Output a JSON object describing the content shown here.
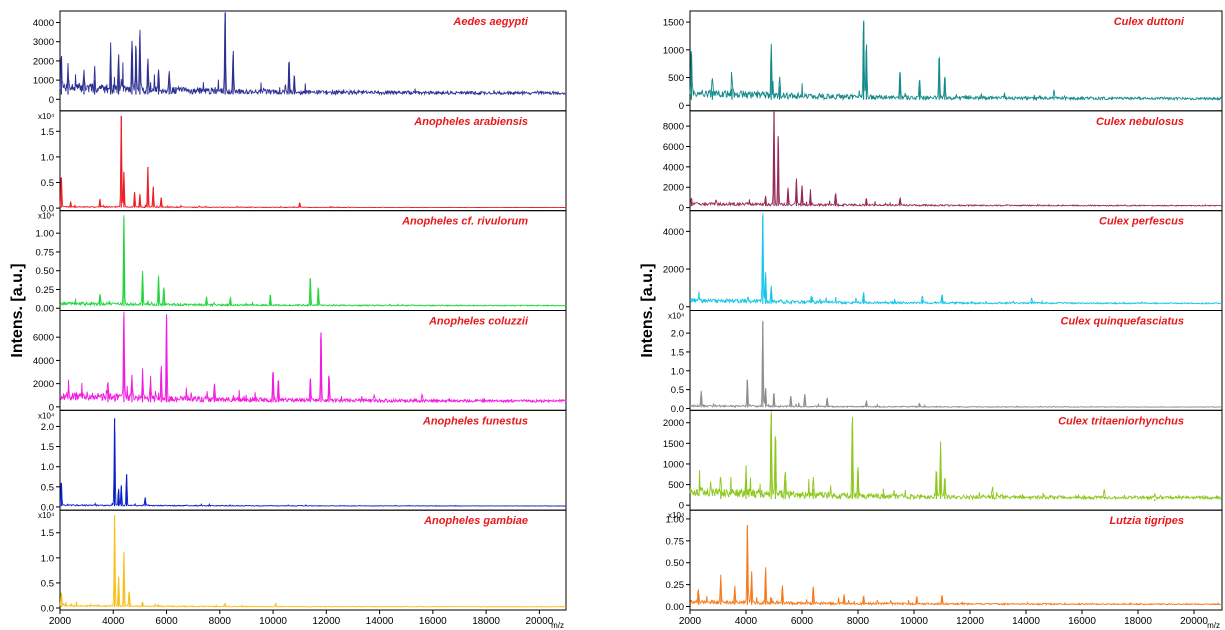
{
  "chart_data": [
    {
      "type": "line",
      "ylabel": "Intens. [a.u.]",
      "xlabel": "m/z",
      "xlim": [
        2000,
        21000
      ],
      "xticks": [
        2000,
        4000,
        6000,
        8000,
        10000,
        12000,
        14000,
        16000,
        18000,
        20000
      ],
      "panels": [
        {
          "name": "Aedes aegypti",
          "color": "#2e3192",
          "scale_label": "",
          "ylim": [
            -600,
            4600
          ],
          "yticks": [
            "0",
            "1000",
            "2000",
            "3000",
            "4000"
          ],
          "ytick_values": [
            0,
            1000,
            2000,
            3000,
            4000
          ],
          "baseline": 250,
          "noise": 500,
          "peaks": [
            [
              2050,
              2000
            ],
            [
              2300,
              1300
            ],
            [
              2900,
              1100
            ],
            [
              3300,
              1000
            ],
            [
              3900,
              2200
            ],
            [
              4200,
              1700
            ],
            [
              4700,
              2400
            ],
            [
              4850,
              2500
            ],
            [
              5000,
              3300
            ],
            [
              5300,
              1600
            ],
            [
              5700,
              1200
            ],
            [
              6100,
              1100
            ],
            [
              8200,
              4500
            ],
            [
              8500,
              2300
            ],
            [
              10600,
              1800
            ],
            [
              10800,
              1000
            ]
          ]
        },
        {
          "name": "Anopheles arabiensis",
          "color": "#ee1c25",
          "scale_label": "x10⁴",
          "ylim": [
            -0.05,
            1.9
          ],
          "yticks": [
            "0.0",
            "0.5",
            "1.0",
            "1.5"
          ],
          "ytick_values": [
            0,
            0.5,
            1.0,
            1.5
          ],
          "baseline": 0.01,
          "noise": 0.02,
          "peaks": [
            [
              2050,
              0.6
            ],
            [
              2400,
              0.1
            ],
            [
              3500,
              0.15
            ],
            [
              4300,
              1.8
            ],
            [
              4400,
              0.7
            ],
            [
              4800,
              0.3
            ],
            [
              5000,
              0.25
            ],
            [
              5300,
              0.8
            ],
            [
              5500,
              0.4
            ],
            [
              5800,
              0.2
            ],
            [
              11000,
              0.1
            ]
          ]
        },
        {
          "name": "Anopheles cf. rivulorum",
          "color": "#22d43c",
          "scale_label": "x10⁴",
          "ylim": [
            -0.03,
            1.3
          ],
          "yticks": [
            "0.00",
            "0.25",
            "0.50",
            "0.75",
            "1.00"
          ],
          "ytick_values": [
            0,
            0.25,
            0.5,
            0.75,
            1.0
          ],
          "baseline": 0.03,
          "noise": 0.04,
          "peaks": [
            [
              3500,
              0.15
            ],
            [
              4400,
              1.2
            ],
            [
              5100,
              0.45
            ],
            [
              5700,
              0.4
            ],
            [
              5900,
              0.25
            ],
            [
              7500,
              0.1
            ],
            [
              8400,
              0.1
            ],
            [
              9900,
              0.15
            ],
            [
              11400,
              0.4
            ],
            [
              11700,
              0.25
            ]
          ]
        },
        {
          "name": "Anopheles coluzzii",
          "color": "#f21ce0",
          "scale_label": "",
          "ylim": [
            -300,
            8300
          ],
          "yticks": [
            "0",
            "2000",
            "4000",
            "6000",
            "8000"
          ],
          "ytick_values": [
            0,
            2000,
            4000,
            6000,
            8000
          ],
          "baseline": 400,
          "noise": 700,
          "peaks": [
            [
              3800,
              1500
            ],
            [
              4400,
              7800
            ],
            [
              4700,
              2000
            ],
            [
              5100,
              2300
            ],
            [
              5400,
              1800
            ],
            [
              5800,
              3000
            ],
            [
              6000,
              7700
            ],
            [
              7800,
              1600
            ],
            [
              10000,
              2800
            ],
            [
              10200,
              1800
            ],
            [
              11400,
              2000
            ],
            [
              11800,
              6400
            ],
            [
              12100,
              2400
            ],
            [
              13800,
              600
            ],
            [
              15600,
              600
            ]
          ]
        },
        {
          "name": "Anopheles funestus",
          "color": "#0c20c4",
          "scale_label": "x10⁴",
          "ylim": [
            -0.08,
            2.4
          ],
          "yticks": [
            "0.0",
            "0.5",
            "1.0",
            "1.5",
            "2.0"
          ],
          "ytick_values": [
            0,
            0.5,
            1.0,
            1.5,
            2.0
          ],
          "baseline": 0.02,
          "noise": 0.03,
          "peaks": [
            [
              2050,
              0.6
            ],
            [
              4050,
              2.2
            ],
            [
              4200,
              0.4
            ],
            [
              4300,
              0.5
            ],
            [
              4500,
              0.8
            ],
            [
              5200,
              0.2
            ]
          ]
        },
        {
          "name": "Anopheles gambiae",
          "color": "#f7c11c",
          "scale_label": "x10⁴",
          "ylim": [
            -0.04,
            1.95
          ],
          "yticks": [
            "0.0",
            "0.5",
            "1.0",
            "1.5"
          ],
          "ytick_values": [
            0,
            0.5,
            1.0,
            1.5
          ],
          "baseline": 0.02,
          "noise": 0.03,
          "peaks": [
            [
              2050,
              0.3
            ],
            [
              4050,
              1.85
            ],
            [
              4200,
              0.6
            ],
            [
              4400,
              1.1
            ],
            [
              4600,
              0.3
            ],
            [
              5100,
              0.1
            ],
            [
              8200,
              0.06
            ],
            [
              10100,
              0.06
            ]
          ]
        }
      ]
    },
    {
      "type": "line",
      "ylabel": "Intens. [a.u.]",
      "xlabel": "m/z",
      "xlim": [
        2000,
        21000
      ],
      "xticks": [
        2000,
        4000,
        6000,
        8000,
        10000,
        12000,
        14000,
        16000,
        18000,
        20000
      ],
      "panels": [
        {
          "name": "Culex duttoni",
          "color": "#128a8a",
          "scale_label": "",
          "ylim": [
            -100,
            1700
          ],
          "yticks": [
            "0",
            "500",
            "1000",
            "1500"
          ],
          "ytick_values": [
            0,
            500,
            1000,
            1500
          ],
          "baseline": 100,
          "noise": 140,
          "peaks": [
            [
              2050,
              850
            ],
            [
              2800,
              250
            ],
            [
              3500,
              300
            ],
            [
              4900,
              900
            ],
            [
              5200,
              350
            ],
            [
              8200,
              1500
            ],
            [
              8300,
              1000
            ],
            [
              9500,
              500
            ],
            [
              10200,
              350
            ],
            [
              10900,
              850
            ],
            [
              11100,
              400
            ],
            [
              15000,
              150
            ]
          ]
        },
        {
          "name": "Culex nebulosus",
          "color": "#962a57",
          "scale_label": "",
          "ylim": [
            -300,
            9500
          ],
          "yticks": [
            "0",
            "2000",
            "4000",
            "6000",
            "8000"
          ],
          "ytick_values": [
            0,
            2000,
            4000,
            6000,
            8000
          ],
          "baseline": 150,
          "noise": 300,
          "peaks": [
            [
              2050,
              600
            ],
            [
              4700,
              800
            ],
            [
              5000,
              9500
            ],
            [
              5150,
              7000
            ],
            [
              5500,
              1700
            ],
            [
              5800,
              2600
            ],
            [
              6000,
              1900
            ],
            [
              6300,
              1100
            ],
            [
              7200,
              1200
            ],
            [
              8300,
              700
            ],
            [
              9500,
              800
            ]
          ]
        },
        {
          "name": "Culex perfescus",
          "color": "#12c6e8",
          "scale_label": "",
          "ylim": [
            -200,
            5100
          ],
          "yticks": [
            "0",
            "2000",
            "4000"
          ],
          "ytick_values": [
            0,
            2000,
            4000
          ],
          "baseline": 150,
          "noise": 220,
          "peaks": [
            [
              4600,
              4800
            ],
            [
              4700,
              1500
            ],
            [
              4900,
              800
            ],
            [
              8200,
              600
            ],
            [
              10300,
              350
            ],
            [
              11000,
              450
            ],
            [
              14200,
              250
            ]
          ]
        },
        {
          "name": "Culex quinquefasciatus",
          "color": "#8c8c8c",
          "scale_label": "x10⁴",
          "ylim": [
            -0.05,
            2.6
          ],
          "yticks": [
            "0.0",
            "0.5",
            "1.0",
            "1.5",
            "2.0"
          ],
          "ytick_values": [
            0,
            0.5,
            1.0,
            1.5,
            2.0
          ],
          "baseline": 0.03,
          "noise": 0.05,
          "peaks": [
            [
              2400,
              0.4
            ],
            [
              4050,
              0.75
            ],
            [
              4600,
              2.3
            ],
            [
              4700,
              0.5
            ],
            [
              5000,
              0.3
            ],
            [
              5600,
              0.3
            ],
            [
              6100,
              0.35
            ],
            [
              6900,
              0.25
            ],
            [
              8300,
              0.15
            ],
            [
              10200,
              0.1
            ]
          ]
        },
        {
          "name": "Culex tritaeniorhynchus",
          "color": "#8cc71b",
          "scale_label": "",
          "ylim": [
            -120,
            2300
          ],
          "yticks": [
            "0",
            "500",
            "1000",
            "1500",
            "2000"
          ],
          "ytick_values": [
            0,
            500,
            1000,
            1500,
            2000
          ],
          "baseline": 150,
          "noise": 220,
          "peaks": [
            [
              3100,
              350
            ],
            [
              4000,
              600
            ],
            [
              4900,
              2200
            ],
            [
              5050,
              1500
            ],
            [
              5400,
              600
            ],
            [
              6400,
              400
            ],
            [
              7800,
              2000
            ],
            [
              8000,
              750
            ],
            [
              10800,
              700
            ],
            [
              10950,
              1300
            ],
            [
              11100,
              500
            ],
            [
              12800,
              250
            ],
            [
              16800,
              200
            ],
            [
              18600,
              100
            ]
          ]
        },
        {
          "name": "Lutzia tigripes",
          "color": "#f57a1c",
          "scale_label": "x10⁴",
          "ylim": [
            -0.04,
            1.1
          ],
          "yticks": [
            "0.00",
            "0.25",
            "0.50",
            "0.75",
            "1.00"
          ],
          "ytick_values": [
            0,
            0.25,
            0.5,
            0.75,
            1.0
          ],
          "baseline": 0.02,
          "noise": 0.04,
          "peaks": [
            [
              2300,
              0.15
            ],
            [
              3100,
              0.3
            ],
            [
              3600,
              0.2
            ],
            [
              4050,
              0.93
            ],
            [
              4200,
              0.35
            ],
            [
              4700,
              0.4
            ],
            [
              5300,
              0.2
            ],
            [
              6400,
              0.2
            ],
            [
              7500,
              0.1
            ],
            [
              8200,
              0.1
            ],
            [
              10100,
              0.08
            ],
            [
              11000,
              0.1
            ]
          ]
        }
      ]
    }
  ]
}
